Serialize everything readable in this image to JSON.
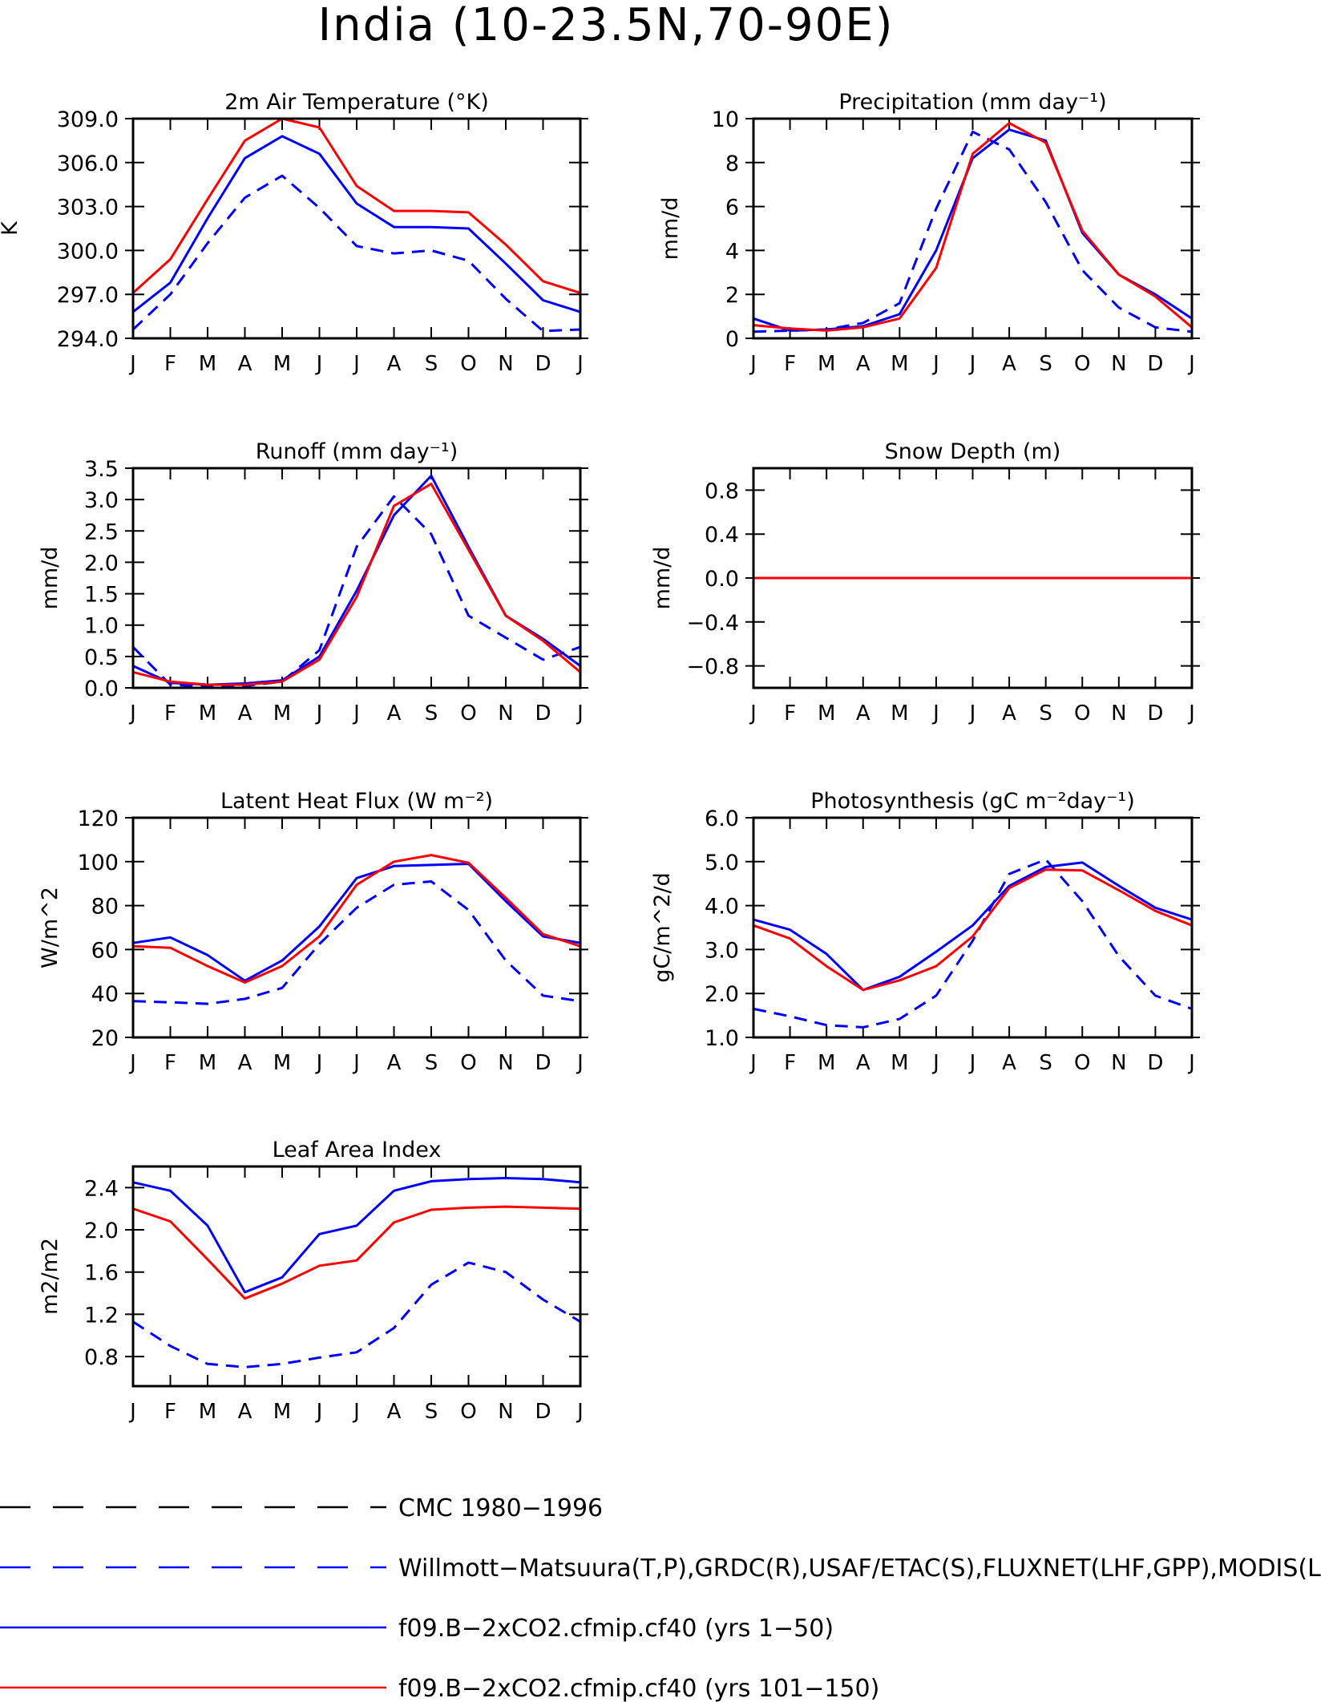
{
  "figure_title": "India (10-23.5N,70-90E)",
  "months": [
    "J",
    "F",
    "M",
    "A",
    "M",
    "J",
    "J",
    "A",
    "S",
    "O",
    "N",
    "D",
    "J"
  ],
  "colors": {
    "model_a": "#0000ff",
    "model_b": "#ff0000",
    "obs": "#0000ff",
    "cmc": "#000000"
  },
  "legend": [
    {
      "key": "cmc",
      "label": "CMC 1980-1996",
      "color": "#000000",
      "dash": true
    },
    {
      "key": "obs",
      "label": "Willmott-Matsuura(T,P),GRDC(R),USAF/ETAC(S),FLUXNET(LHF,GPP),MODIS(L",
      "color": "#0000ff",
      "dash": true
    },
    {
      "key": "model_a",
      "label": "f09.B-2xCO2.cfmip.cf40 (yrs 1-50)",
      "color": "#0000ff",
      "dash": false
    },
    {
      "key": "model_b",
      "label": "f09.B-2xCO2.cfmip.cf40 (yrs 101-150)",
      "color": "#ff0000",
      "dash": false
    }
  ],
  "chart_data": [
    {
      "type": "line",
      "title": "2m Air Temperature (°K)",
      "ylabel": "K",
      "ylim": [
        294,
        309
      ],
      "yticks": [
        "294.0",
        "297.0",
        "300.0",
        "303.0",
        "306.0",
        "309.0"
      ],
      "ytick_values": [
        294,
        297,
        300,
        303,
        306,
        309
      ],
      "series": [
        {
          "key": "model_b",
          "values": [
            297.1,
            299.4,
            303.5,
            307.5,
            309.0,
            308.4,
            304.4,
            302.7,
            302.7,
            302.6,
            300.4,
            297.9,
            297.1
          ]
        },
        {
          "key": "model_a",
          "values": [
            295.8,
            297.8,
            302.2,
            306.3,
            307.8,
            306.6,
            303.2,
            301.6,
            301.6,
            301.5,
            299.1,
            296.6,
            295.8
          ]
        },
        {
          "key": "obs",
          "values": [
            294.6,
            297.0,
            300.5,
            303.6,
            305.1,
            302.9,
            300.3,
            299.8,
            300.0,
            299.3,
            296.7,
            294.5,
            294.6
          ]
        }
      ]
    },
    {
      "type": "line",
      "title": "Precipitation (mm day⁻¹)",
      "ylabel": "mm/d",
      "ylim": [
        0,
        10
      ],
      "yticks": [
        "0",
        "2",
        "4",
        "6",
        "8",
        "10"
      ],
      "ytick_values": [
        0,
        2,
        4,
        6,
        8,
        10
      ],
      "series": [
        {
          "key": "model_b",
          "values": [
            0.6,
            0.45,
            0.35,
            0.5,
            0.9,
            3.2,
            8.4,
            9.8,
            8.9,
            4.9,
            2.9,
            1.9,
            0.5
          ]
        },
        {
          "key": "model_a",
          "values": [
            0.9,
            0.35,
            0.4,
            0.55,
            1.1,
            4.0,
            8.2,
            9.5,
            9.0,
            4.8,
            2.9,
            2.0,
            0.9
          ]
        },
        {
          "key": "obs",
          "values": [
            0.3,
            0.35,
            0.4,
            0.7,
            1.6,
            5.9,
            9.4,
            8.6,
            6.2,
            3.1,
            1.4,
            0.5,
            0.3
          ]
        }
      ]
    },
    {
      "type": "line",
      "title": "Runoff (mm day⁻¹)",
      "ylabel": "mm/d",
      "ylim": [
        0,
        3.5
      ],
      "yticks": [
        "0.0",
        "0.5",
        "1.0",
        "1.5",
        "2.0",
        "2.5",
        "3.0",
        "3.5"
      ],
      "ytick_values": [
        0,
        0.5,
        1,
        1.5,
        2,
        2.5,
        3,
        3.5
      ],
      "series": [
        {
          "key": "model_b",
          "values": [
            0.25,
            0.1,
            0.05,
            0.05,
            0.1,
            0.45,
            1.45,
            2.9,
            3.25,
            2.2,
            1.15,
            0.75,
            0.25
          ]
        },
        {
          "key": "model_a",
          "values": [
            0.35,
            0.08,
            0.05,
            0.07,
            0.12,
            0.5,
            1.55,
            2.75,
            3.38,
            2.25,
            1.15,
            0.78,
            0.35
          ]
        },
        {
          "key": "obs",
          "values": [
            0.65,
            0.05,
            0.02,
            0.03,
            0.1,
            0.6,
            2.25,
            3.05,
            2.45,
            1.15,
            0.8,
            0.45,
            0.65
          ]
        }
      ]
    },
    {
      "type": "line",
      "title": "Snow Depth (m)",
      "ylabel": "mm/d",
      "ylim": [
        -1,
        1
      ],
      "yticks": [
        "-0.8",
        "-0.4",
        "0.0",
        "0.4",
        "0.8"
      ],
      "ytick_values": [
        -0.8,
        -0.4,
        0,
        0.4,
        0.8
      ],
      "series": [
        {
          "key": "model_b",
          "values": [
            0,
            0,
            0,
            0,
            0,
            0,
            0,
            0,
            0,
            0,
            0,
            0,
            0
          ]
        },
        {
          "key": "model_a",
          "values": [
            0,
            0,
            0,
            0,
            0,
            0,
            0,
            0,
            0,
            0,
            0,
            0,
            0
          ]
        },
        {
          "key": "obs",
          "values": [
            0,
            0,
            0,
            0,
            0,
            0,
            0,
            0,
            0,
            0,
            0,
            0,
            0
          ]
        }
      ]
    },
    {
      "type": "line",
      "title": "Latent Heat Flux (W m⁻²)",
      "ylabel": "W/m^2",
      "ylim": [
        20,
        120
      ],
      "yticks": [
        "20",
        "40",
        "60",
        "80",
        "100",
        "120"
      ],
      "ytick_values": [
        20,
        40,
        60,
        80,
        100,
        120
      ],
      "series": [
        {
          "key": "model_b",
          "values": [
            61.5,
            60.8,
            52.5,
            45.0,
            52.5,
            66.0,
            89.5,
            100.0,
            103.0,
            99.5,
            83.5,
            67.0,
            61.5
          ]
        },
        {
          "key": "model_a",
          "values": [
            63.0,
            65.5,
            57.5,
            45.8,
            55.0,
            70.5,
            92.5,
            98.0,
            98.5,
            99.0,
            82.0,
            66.0,
            63.0
          ]
        },
        {
          "key": "obs",
          "values": [
            36.5,
            36.0,
            35.3,
            37.5,
            42.5,
            62.5,
            79.0,
            89.5,
            91.0,
            78.0,
            55.0,
            39.0,
            36.5
          ]
        }
      ]
    },
    {
      "type": "line",
      "title": "Photosynthesis (gC m⁻²day⁻¹)",
      "ylabel": "gC/m^2/d",
      "ylim": [
        1,
        6
      ],
      "yticks": [
        "1.0",
        "2.0",
        "3.0",
        "4.0",
        "5.0",
        "6.0"
      ],
      "ytick_values": [
        1,
        2,
        3,
        4,
        5,
        6
      ],
      "series": [
        {
          "key": "model_b",
          "values": [
            3.55,
            3.25,
            2.62,
            2.08,
            2.3,
            2.62,
            3.3,
            4.4,
            4.82,
            4.8,
            4.35,
            3.88,
            3.55
          ]
        },
        {
          "key": "model_a",
          "values": [
            3.68,
            3.45,
            2.9,
            2.08,
            2.38,
            2.95,
            3.55,
            4.45,
            4.88,
            4.98,
            4.45,
            3.95,
            3.68
          ]
        },
        {
          "key": "obs",
          "values": [
            1.65,
            1.48,
            1.28,
            1.23,
            1.42,
            1.95,
            3.2,
            4.72,
            5.05,
            4.1,
            2.85,
            1.95,
            1.65
          ]
        }
      ]
    },
    {
      "type": "line",
      "title": "Leaf Area Index",
      "ylabel": "m2/m2",
      "ylim": [
        0.52,
        2.6
      ],
      "yticks": [
        "0.8",
        "1.2",
        "1.6",
        "2.0",
        "2.4"
      ],
      "ytick_values": [
        0.8,
        1.2,
        1.6,
        2.0,
        2.4
      ],
      "series": [
        {
          "key": "model_b",
          "values": [
            2.2,
            2.08,
            1.72,
            1.35,
            1.49,
            1.66,
            1.71,
            2.07,
            2.19,
            2.21,
            2.22,
            2.21,
            2.2
          ]
        },
        {
          "key": "model_a",
          "values": [
            2.45,
            2.37,
            2.04,
            1.41,
            1.55,
            1.96,
            2.04,
            2.37,
            2.46,
            2.48,
            2.49,
            2.48,
            2.45
          ]
        },
        {
          "key": "obs",
          "values": [
            1.13,
            0.9,
            0.73,
            0.7,
            0.73,
            0.79,
            0.84,
            1.07,
            1.48,
            1.69,
            1.6,
            1.34,
            1.13
          ]
        }
      ]
    }
  ]
}
